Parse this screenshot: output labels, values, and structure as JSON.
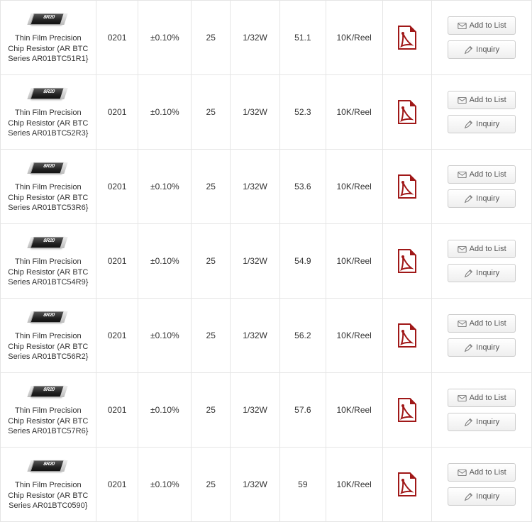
{
  "buttons": {
    "add_label": "Add to List",
    "inquiry_label": "Inquiry"
  },
  "chip_marking": "8R20",
  "rows": [
    {
      "name": "Thin Film Precision Chip Resistor (AR BTC Series AR01BTC51R1}",
      "code": "0201",
      "tol": "±0.10%",
      "tc": "25",
      "power": "1/32W",
      "val": "51.1",
      "pack": "10K/Reel"
    },
    {
      "name": "Thin Film Precision Chip Resistor (AR BTC Series AR01BTC52R3}",
      "code": "0201",
      "tol": "±0.10%",
      "tc": "25",
      "power": "1/32W",
      "val": "52.3",
      "pack": "10K/Reel"
    },
    {
      "name": "Thin Film Precision Chip Resistor (AR BTC Series AR01BTC53R6}",
      "code": "0201",
      "tol": "±0.10%",
      "tc": "25",
      "power": "1/32W",
      "val": "53.6",
      "pack": "10K/Reel"
    },
    {
      "name": "Thin Film Precision Chip Resistor (AR BTC Series AR01BTC54R9}",
      "code": "0201",
      "tol": "±0.10%",
      "tc": "25",
      "power": "1/32W",
      "val": "54.9",
      "pack": "10K/Reel"
    },
    {
      "name": "Thin Film Precision Chip Resistor (AR BTC Series AR01BTC56R2}",
      "code": "0201",
      "tol": "±0.10%",
      "tc": "25",
      "power": "1/32W",
      "val": "56.2",
      "pack": "10K/Reel"
    },
    {
      "name": "Thin Film Precision Chip Resistor (AR BTC Series AR01BTC57R6}",
      "code": "0201",
      "tol": "±0.10%",
      "tc": "25",
      "power": "1/32W",
      "val": "57.6",
      "pack": "10K/Reel"
    },
    {
      "name": "Thin Film Precision Chip Resistor (AR BTC Series AR01BTC0590}",
      "code": "0201",
      "tol": "±0.10%",
      "tc": "25",
      "power": "1/32W",
      "val": "59",
      "pack": "10K/Reel"
    }
  ]
}
